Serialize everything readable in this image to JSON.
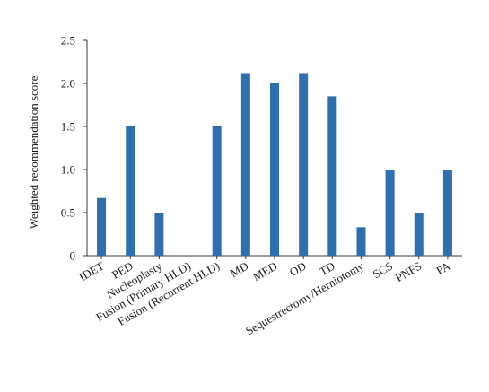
{
  "chart_data": {
    "type": "bar",
    "title": "",
    "xlabel": "",
    "ylabel": "Weighted recommendation score",
    "categories": [
      "IDET",
      "PED",
      "Nucleoplasty",
      "Fusion (Primary HLD)",
      "Fusion (Recurrent HLD)",
      "MD",
      "MED",
      "OD",
      "TD",
      "Sequestrectomy/Herniotomy",
      "SCS",
      "PNFS",
      "PA"
    ],
    "values": [
      0.67,
      1.5,
      0.5,
      0,
      1.5,
      2.12,
      2.0,
      2.12,
      1.85,
      0.33,
      1.0,
      0.5,
      1.0
    ],
    "ylim": [
      0,
      2.5
    ],
    "yticks": [
      "0",
      "0.5",
      "1.0",
      "1.5",
      "2.0",
      "2.5"
    ],
    "ytick_values": [
      0,
      0.5,
      1.0,
      1.5,
      2.0,
      2.5
    ],
    "bar_color": "#2e6fb0",
    "grid": false,
    "legend": "none"
  }
}
